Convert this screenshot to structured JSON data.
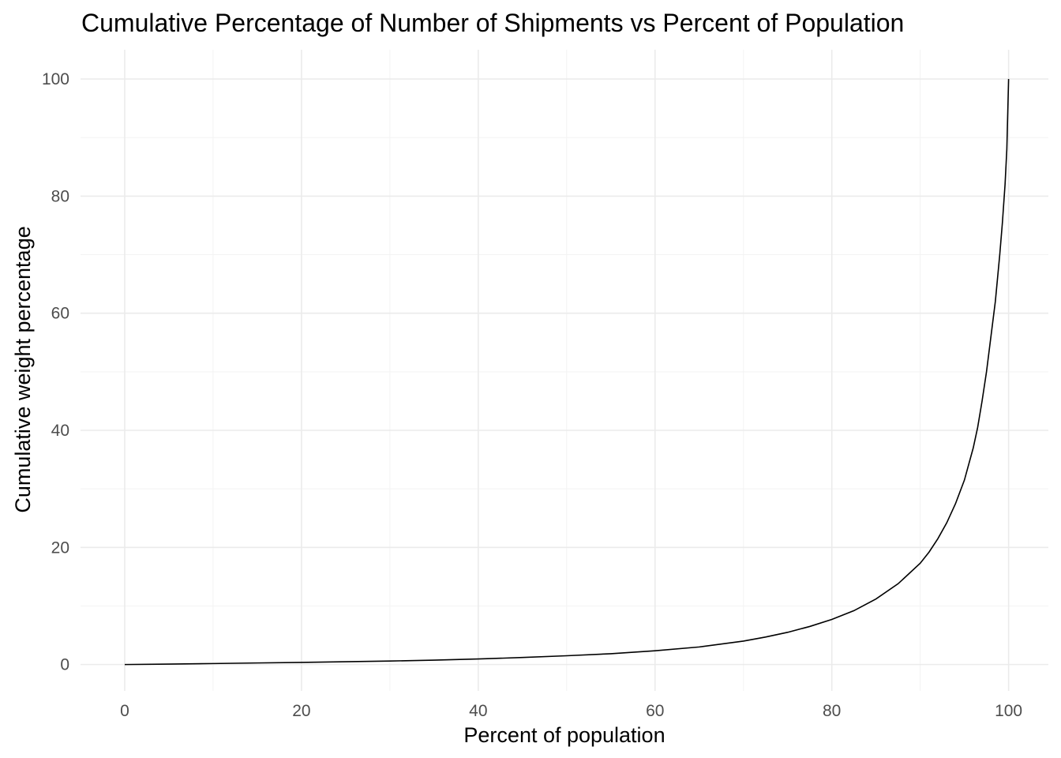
{
  "chart_data": {
    "type": "line",
    "title": "Cumulative Percentage of Number of Shipments vs Percent of Population",
    "xlabel": "Percent of population",
    "ylabel": "Cumulative weight percentage",
    "xlim": [
      -5,
      104.5
    ],
    "ylim": [
      -4.5,
      105
    ],
    "x_ticks": [
      0,
      20,
      40,
      60,
      80,
      100
    ],
    "y_ticks": [
      0,
      20,
      40,
      60,
      80,
      100
    ],
    "x_tick_labels": [
      "0",
      "20",
      "40",
      "60",
      "80",
      "100"
    ],
    "y_tick_labels": [
      "0",
      "20",
      "40",
      "60",
      "80",
      "100"
    ],
    "x_minor": [
      10,
      30,
      50,
      70,
      90
    ],
    "y_minor": [
      10,
      30,
      50,
      70,
      90
    ],
    "grid": true,
    "legend": "none",
    "line_color": "#000000",
    "series": [
      {
        "x": [
          0,
          5,
          10,
          15,
          20,
          25,
          30,
          35,
          40,
          45,
          50,
          55,
          60,
          65,
          70,
          72.5,
          75,
          77.5,
          80,
          82.5,
          85,
          87.5,
          90,
          91,
          92,
          93,
          94,
          95,
          96,
          96.5,
          97,
          97.5,
          98,
          98.5,
          99,
          99.3,
          99.6,
          99.8,
          100
        ],
        "y": [
          0,
          0.08,
          0.17,
          0.27,
          0.37,
          0.48,
          0.6,
          0.75,
          0.95,
          1.2,
          1.5,
          1.85,
          2.35,
          3.0,
          4.0,
          4.7,
          5.5,
          6.5,
          7.7,
          9.2,
          11.2,
          13.8,
          17.3,
          19.2,
          21.5,
          24.2,
          27.5,
          31.5,
          37.0,
          40.5,
          45.0,
          50.0,
          56.0,
          62.0,
          70.0,
          75.5,
          82.0,
          88.0,
          100
        ]
      }
    ]
  }
}
